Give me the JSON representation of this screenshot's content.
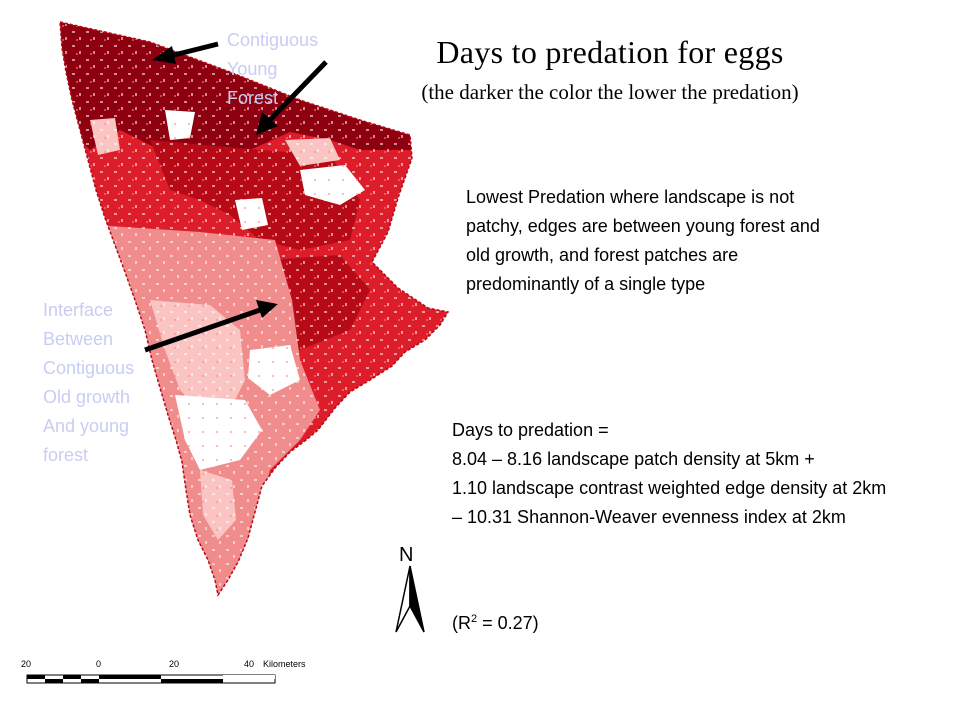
{
  "title": "Days to predation for eggs",
  "subtitle": "(the darker the color the lower the predation)",
  "annotations": {
    "young_forest_lines": [
      "Contiguous",
      "Young",
      "Forest"
    ],
    "interface_lines": [
      "Interface",
      "Between",
      "Contiguous",
      "Old growth",
      "And young",
      "forest"
    ]
  },
  "note": "Lowest Predation where landscape is not patchy, edges are between young forest and old growth, and forest patches are predominantly of a single type",
  "equation_lines": [
    "Days to predation =",
    "8.04 – 8.16 landscape patch density at 5km +",
    "1.10 landscape contrast weighted edge density at 2km",
    "– 10.31 Shannon-Weaver evenness index at 2km"
  ],
  "r_squared": {
    "prefix": "(R",
    "superscript": "2",
    "suffix": " = 0.27)"
  },
  "north_arrow": {
    "label": "N",
    "icon": "north-arrow-icon"
  },
  "scale_bar": {
    "labels": [
      "20",
      "0",
      "20",
      "40"
    ],
    "unit": "Kilometers"
  },
  "colors": {
    "darkest": "#8e0010",
    "dark": "#b80a16",
    "medium": "#dd1d2a",
    "light": "#f08c8c",
    "lightest": "#f9c4c2",
    "annotation_text": "#c8cdf3"
  }
}
